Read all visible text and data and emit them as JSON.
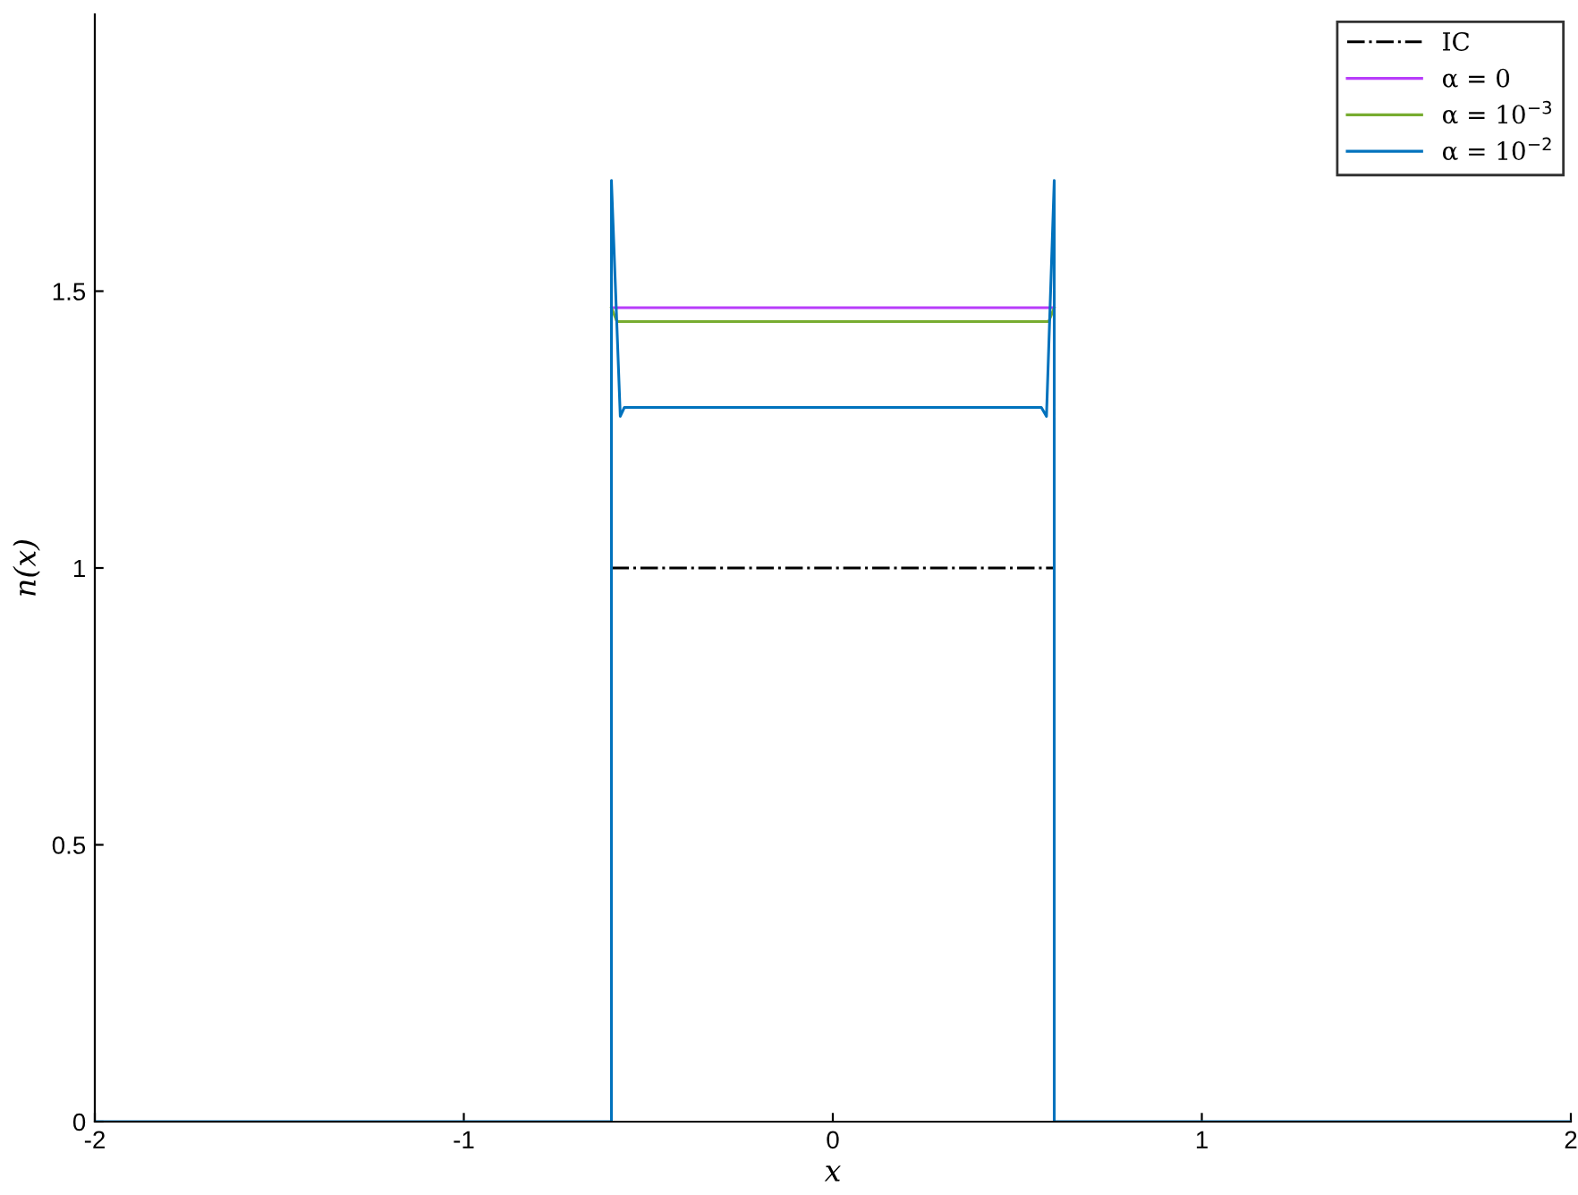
{
  "chart_data": {
    "type": "line",
    "xlabel": "x",
    "ylabel": "n(x)",
    "xlim": [
      -2,
      2
    ],
    "ylim": [
      0,
      2
    ],
    "xticks": [
      -2,
      -1,
      0,
      1,
      2
    ],
    "yticks": [
      0,
      0.5,
      1,
      1.5
    ],
    "grid": false,
    "legend": "top right",
    "marker": "none",
    "series": [
      {
        "name": "IC",
        "color": "#000000",
        "line_style": "dashdot",
        "x": [
          -0.6,
          0.6
        ],
        "values": [
          1,
          1
        ]
      },
      {
        "name": "α = 0",
        "color": "#b83dfa",
        "x": [
          -0.6,
          0.6
        ],
        "values": [
          1.47,
          1.47
        ]
      },
      {
        "name": "α = 10$^{−3}$",
        "color": "#77ac30",
        "x": [
          -0.6,
          -0.585,
          0.585,
          0.6
        ],
        "values": [
          1.47,
          1.445,
          1.445,
          1.47
        ]
      },
      {
        "name": "α = 10$^{−2}$",
        "color": "#0072bd",
        "x": [
          -2,
          -0.6,
          -0.6,
          -0.576,
          -0.565,
          0.565,
          0.579,
          0.6,
          0.6,
          2
        ],
        "values": [
          0,
          0,
          1.7,
          1.274,
          1.29,
          1.29,
          1.274,
          1.7,
          0,
          0
        ]
      }
    ]
  }
}
